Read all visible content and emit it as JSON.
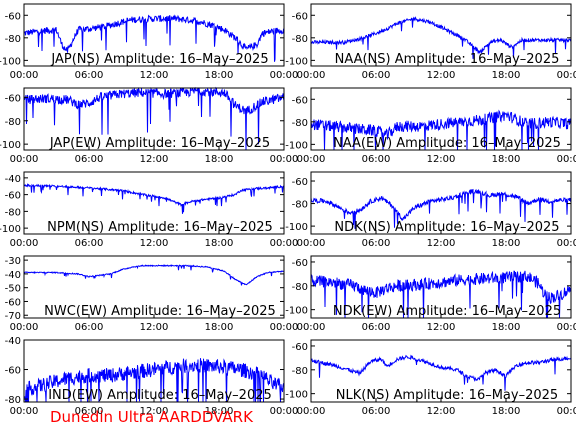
{
  "footer": {
    "credit": "Dunedin Ultra AARDDVARK"
  },
  "colors": {
    "trace": "#0000ff",
    "axis": "#000000",
    "footer": "#ff0000",
    "background": "#ffffff"
  },
  "chart_data": [
    {
      "type": "line",
      "title": "JAP(NS) Amplitude: 16–May–2025",
      "xticks": [
        "00:00",
        "06:00",
        "12:00",
        "18:00",
        "00:00"
      ],
      "xlim": [
        0,
        24
      ],
      "yticks": [
        -60,
        -80,
        -100
      ],
      "ylim": [
        -105,
        -50
      ],
      "noise": 3,
      "series": [
        {
          "x": [
            0,
            1.5,
            3,
            3.5,
            4,
            5,
            6,
            7.5,
            9,
            10,
            12,
            14,
            15,
            16,
            17.5,
            18.5,
            19.5,
            20.5,
            21.5,
            22,
            23,
            24
          ],
          "y": [
            -76,
            -74,
            -73,
            -86,
            -92,
            -73,
            -72,
            -70,
            -66,
            -64,
            -63,
            -63,
            -64,
            -65,
            -69,
            -73,
            -80,
            -90,
            -86,
            -76,
            -74,
            -73
          ]
        }
      ]
    },
    {
      "type": "line",
      "title": "NAA(NS) Amplitude: 16–May–2025",
      "xticks": [
        "00:00",
        "06:00",
        "12:00",
        "18:00",
        "00:00"
      ],
      "xlim": [
        0,
        24
      ],
      "yticks": [
        -60,
        -80,
        -100
      ],
      "ylim": [
        -105,
        -50
      ],
      "noise": 1.5,
      "series": [
        {
          "x": [
            0,
            3,
            4.5,
            6,
            7,
            8,
            9.5,
            11,
            12.5,
            14,
            15,
            15.6,
            16.5,
            17.5,
            18.5,
            19.5,
            20.5,
            21.5,
            22.5,
            24
          ],
          "y": [
            -84,
            -84,
            -81,
            -76,
            -72,
            -67,
            -63,
            -66,
            -73,
            -80,
            -88,
            -93,
            -84,
            -82,
            -88,
            -82,
            -82,
            -82,
            -82,
            -82
          ]
        }
      ]
    },
    {
      "type": "line",
      "title": "JAP(EW) Amplitude: 16–May–2025",
      "xticks": [
        "00:00",
        "06:00",
        "12:00",
        "18:00",
        "00:00"
      ],
      "xlim": [
        0,
        24
      ],
      "yticks": [
        -60,
        -80,
        -100
      ],
      "ylim": [
        -105,
        -52
      ],
      "noise": 4,
      "series": [
        {
          "x": [
            0,
            2,
            4,
            5,
            6,
            7,
            9,
            11,
            13,
            15,
            16,
            17,
            18.5,
            19.5,
            20.5,
            22,
            24
          ],
          "y": [
            -62,
            -61,
            -62,
            -66,
            -65,
            -60,
            -57,
            -56,
            -57,
            -56,
            -54,
            -55,
            -56,
            -67,
            -72,
            -64,
            -60
          ]
        }
      ]
    },
    {
      "type": "line",
      "title": "NAA(EW) Amplitude: 16–May–2025",
      "xticks": [
        "00:00",
        "06:00",
        "12:00",
        "18:00",
        "00:00"
      ],
      "xlim": [
        0,
        24
      ],
      "yticks": [
        -60,
        -80,
        -100
      ],
      "ylim": [
        -105,
        -50
      ],
      "noise": 5,
      "series": [
        {
          "x": [
            0,
            2,
            4,
            6,
            7,
            8,
            10,
            12,
            14,
            16,
            17,
            18,
            19,
            20,
            22,
            24
          ],
          "y": [
            -82,
            -84,
            -86,
            -88,
            -92,
            -84,
            -84,
            -82,
            -80,
            -78,
            -76,
            -74,
            -78,
            -82,
            -80,
            -82
          ]
        }
      ]
    },
    {
      "type": "line",
      "title": "NPM(NS) Amplitude: 16–May–2025",
      "xticks": [
        "00:00",
        "06:00",
        "12:00",
        "18:00",
        "00:00"
      ],
      "xlim": [
        0,
        24
      ],
      "yticks": [
        -40,
        -60,
        -80,
        -100
      ],
      "ylim": [
        -107,
        -33
      ],
      "noise": 1.2,
      "series": [
        {
          "x": [
            0,
            3,
            6,
            9,
            11,
            12,
            13,
            14.5,
            15.5,
            16.5,
            18,
            19.5,
            20,
            21,
            22.5,
            24
          ],
          "y": [
            -49,
            -50,
            -52,
            -55,
            -60,
            -62,
            -64,
            -72,
            -68,
            -66,
            -64,
            -60,
            -55,
            -53,
            -52,
            -50
          ]
        }
      ]
    },
    {
      "type": "line",
      "title": "NDK(NS) Amplitude: 16–May–2025",
      "xticks": [
        "00:00",
        "06:00",
        "12:00",
        "18:00",
        "00:00"
      ],
      "xlim": [
        0,
        24
      ],
      "yticks": [
        -60,
        -80,
        -100
      ],
      "ylim": [
        -107,
        -52
      ],
      "noise": 2,
      "series": [
        {
          "x": [
            0,
            1.5,
            2.5,
            3.5,
            4.5,
            5.5,
            6.5,
            7.5,
            8.5,
            9.5,
            11,
            13,
            14.5,
            15.5,
            16.5,
            17.5,
            19,
            20,
            21,
            22,
            23,
            24
          ],
          "y": [
            -77,
            -78,
            -83,
            -88,
            -86,
            -78,
            -75,
            -82,
            -94,
            -84,
            -78,
            -75,
            -70,
            -69,
            -73,
            -71,
            -74,
            -80,
            -76,
            -78,
            -77,
            -77
          ]
        }
      ]
    },
    {
      "type": "line",
      "title": "NWC(EW) Amplitude: 16–May–2025",
      "xticks": [
        "00:00",
        "06:00",
        "12:00",
        "18:00",
        "00:00"
      ],
      "xlim": [
        0,
        24
      ],
      "yticks": [
        -30,
        -40,
        -50,
        -60,
        -70
      ],
      "ylim": [
        -72,
        -27
      ],
      "noise": 0.4,
      "series": [
        {
          "x": [
            0,
            3,
            5,
            6,
            7,
            8,
            9,
            10,
            11,
            13,
            15,
            17,
            18.5,
            19.5,
            20.5,
            21.5,
            22.5,
            24
          ],
          "y": [
            -39,
            -39,
            -40,
            -42,
            -41,
            -40,
            -37,
            -35,
            -34,
            -34,
            -34,
            -35,
            -38,
            -44,
            -48,
            -42,
            -39,
            -38
          ]
        }
      ]
    },
    {
      "type": "line",
      "title": "NDK(EW) Amplitude: 16–May–2025",
      "xticks": [
        "00:00",
        "06:00",
        "12:00",
        "18:00",
        "00:00"
      ],
      "xlim": [
        0,
        24
      ],
      "yticks": [
        -60,
        -80,
        -100
      ],
      "ylim": [
        -107,
        -55
      ],
      "noise": 5,
      "series": [
        {
          "x": [
            0,
            2,
            4,
            5,
            6,
            7,
            8,
            10,
            12,
            14,
            16,
            18,
            20,
            21,
            21.5,
            22,
            23,
            24
          ],
          "y": [
            -76,
            -77,
            -80,
            -84,
            -86,
            -82,
            -80,
            -79,
            -77,
            -75,
            -74,
            -73,
            -72,
            -78,
            -86,
            -90,
            -88,
            -82
          ]
        }
      ]
    },
    {
      "type": "line",
      "title": "IND(EW) Amplitude: 16–May–2025",
      "xticks": [
        "00:00",
        "06:00",
        "12:00",
        "18:00",
        "00:00"
      ],
      "xlim": [
        0,
        24
      ],
      "yticks": [
        -40,
        -60,
        -80
      ],
      "ylim": [
        -82,
        -40
      ],
      "noise": 5,
      "series": [
        {
          "x": [
            0,
            2,
            4,
            6,
            8,
            10,
            12,
            14,
            16,
            18,
            20,
            22,
            23,
            24
          ],
          "y": [
            -74,
            -70,
            -66,
            -64,
            -64,
            -62,
            -60,
            -58,
            -57,
            -58,
            -60,
            -64,
            -70,
            -72
          ]
        }
      ]
    },
    {
      "type": "line",
      "title": "NLK(NS) Amplitude: 16–May–2025",
      "xticks": [
        "00:00",
        "06:00",
        "12:00",
        "18:00",
        "00:00"
      ],
      "xlim": [
        0,
        24
      ],
      "yticks": [
        -60,
        -80,
        -100
      ],
      "ylim": [
        -107,
        -55
      ],
      "noise": 1.5,
      "series": [
        {
          "x": [
            0,
            2,
            3.5,
            4.5,
            5.5,
            6.5,
            7,
            8,
            9,
            10.5,
            12,
            13.5,
            14.5,
            15.5,
            16,
            17,
            18,
            19,
            20,
            21,
            22,
            23,
            24
          ],
          "y": [
            -72,
            -76,
            -80,
            -83,
            -73,
            -71,
            -77,
            -71,
            -69,
            -73,
            -78,
            -80,
            -86,
            -88,
            -83,
            -80,
            -85,
            -76,
            -74,
            -74,
            -72,
            -71,
            -70
          ]
        }
      ]
    }
  ]
}
